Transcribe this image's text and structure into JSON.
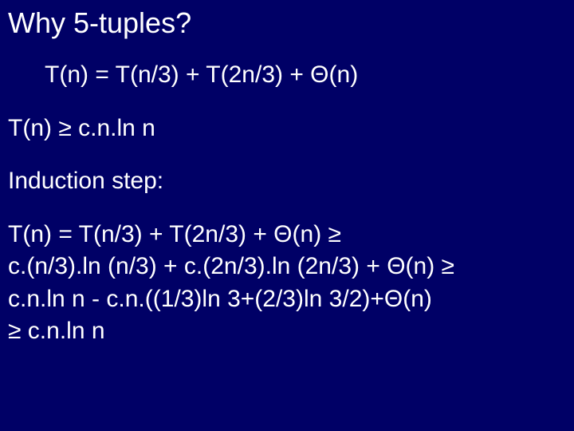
{
  "background_color": "#000066",
  "text_color": "#ffffff",
  "font_family": "Arial, sans-serif",
  "title_fontsize": 36,
  "body_fontsize": 30,
  "slide": {
    "title": "Why 5-tuples?",
    "recurrence": "T(n) = T(n/3) + T(2n/3) + Θ(n)",
    "hypothesis": "T(n) ≥ c.n.ln n",
    "step_label": "Induction step:",
    "proof": {
      "l1": "T(n) =  T(n/3) + T(2n/3) + Θ(n) ≥",
      "l2": "c.(n/3).ln (n/3) + c.(2n/3).ln (2n/3) + Θ(n) ≥",
      "l3": " c.n.ln n - c.n.((1/3)ln 3+(2/3)ln 3/2)+Θ(n)",
      "l4": "≥ c.n.ln n"
    }
  }
}
